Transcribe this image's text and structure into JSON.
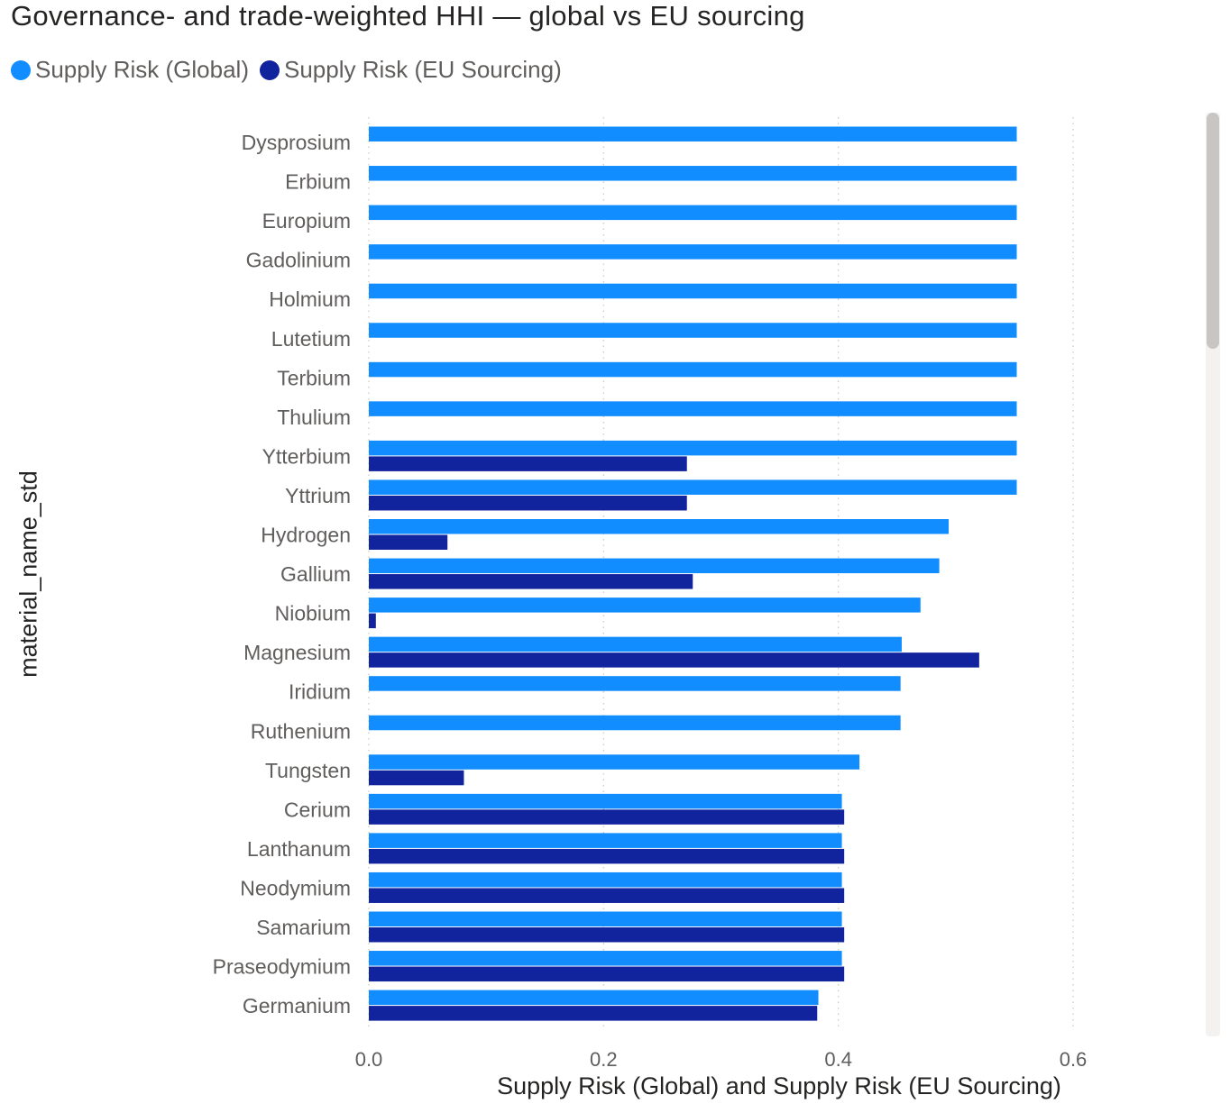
{
  "chart_data": {
    "type": "bar",
    "orientation": "horizontal",
    "title": "Governance- and trade-weighted HHI — global vs EU sourcing",
    "xlabel": "Supply Risk (Global) and Supply Risk (EU Sourcing)",
    "ylabel": "material_name_std",
    "xlim": [
      0,
      0.6
    ],
    "xticks": [
      "0.0",
      "0.2",
      "0.4",
      "0.6"
    ],
    "grid": true,
    "legend_position": "top-left",
    "categories": [
      "Dysprosium",
      "Erbium",
      "Europium",
      "Gadolinium",
      "Holmium",
      "Lutetium",
      "Terbium",
      "Thulium",
      "Ytterbium",
      "Yttrium",
      "Hydrogen",
      "Gallium",
      "Niobium",
      "Magnesium",
      "Iridium",
      "Ruthenium",
      "Tungsten",
      "Cerium",
      "Lanthanum",
      "Neodymium",
      "Samarium",
      "Praseodymium",
      "Germanium"
    ],
    "series": [
      {
        "name": "Supply Risk (Global)",
        "color": "#118dff",
        "values": [
          0.552,
          0.552,
          0.552,
          0.552,
          0.552,
          0.552,
          0.552,
          0.552,
          0.552,
          0.552,
          0.494,
          0.486,
          0.47,
          0.454,
          0.453,
          0.453,
          0.418,
          0.403,
          0.403,
          0.403,
          0.403,
          0.403,
          0.383
        ]
      },
      {
        "name": "Supply Risk (EU Sourcing)",
        "color": "#12239e",
        "values": [
          null,
          null,
          null,
          null,
          null,
          null,
          null,
          null,
          0.271,
          0.271,
          0.067,
          0.276,
          0.006,
          0.52,
          null,
          null,
          0.081,
          0.405,
          0.405,
          0.405,
          0.405,
          0.405,
          0.382
        ]
      }
    ]
  },
  "scrollbar": {
    "label": "vertical-scrollbar"
  }
}
